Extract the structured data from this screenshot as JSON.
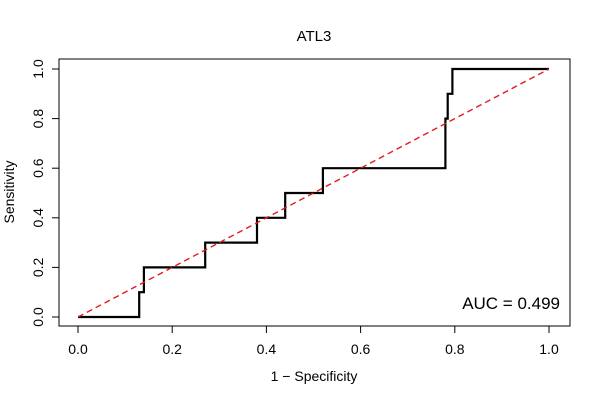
{
  "chart_data": {
    "type": "line",
    "title": "ATL3",
    "xlabel": "1 − Specificity",
    "ylabel": "Sensitivity",
    "xlim": [
      0,
      1
    ],
    "ylim": [
      0,
      1
    ],
    "x_ticks": [
      "0.0",
      "0.2",
      "0.4",
      "0.6",
      "0.8",
      "1.0"
    ],
    "y_ticks": [
      "0.0",
      "0.2",
      "0.4",
      "0.6",
      "0.8",
      "1.0"
    ],
    "annotation": "AUC = 0.499",
    "grid": false,
    "series": [
      {
        "color": "#000000",
        "style": "solid",
        "x": [
          0.0,
          0.13,
          0.13,
          0.14,
          0.14,
          0.27,
          0.27,
          0.38,
          0.38,
          0.44,
          0.44,
          0.52,
          0.52,
          0.78,
          0.78,
          0.785,
          0.785,
          0.795,
          0.795,
          1.0
        ],
        "y": [
          0.0,
          0.0,
          0.1,
          0.1,
          0.2,
          0.2,
          0.3,
          0.3,
          0.4,
          0.4,
          0.5,
          0.5,
          0.6,
          0.6,
          0.8,
          0.8,
          0.9,
          0.9,
          1.0,
          1.0
        ]
      },
      {
        "color": "#e41a1c",
        "style": "dashed",
        "x": [
          0.0,
          1.0
        ],
        "y": [
          0.0,
          1.0
        ]
      }
    ]
  }
}
